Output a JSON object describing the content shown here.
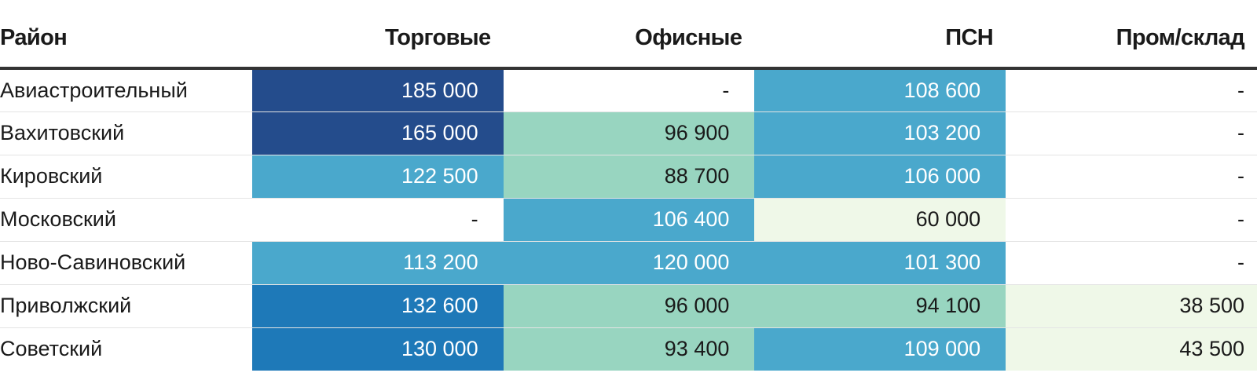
{
  "chart_data": {
    "type": "table",
    "columns": [
      "Район",
      "Торговые",
      "Офисные",
      "ПСН",
      "Пром/склад"
    ],
    "rows": [
      {
        "district": "Авиастроительный",
        "values": [
          "185 000",
          "-",
          "108 600",
          "-"
        ],
        "numeric": [
          185000,
          null,
          108600,
          null
        ]
      },
      {
        "district": "Вахитовский",
        "values": [
          "165 000",
          "96 900",
          "103 200",
          "-"
        ],
        "numeric": [
          165000,
          96900,
          103200,
          null
        ]
      },
      {
        "district": "Кировский",
        "values": [
          "122 500",
          "88 700",
          "106 000",
          "-"
        ],
        "numeric": [
          122500,
          88700,
          106000,
          null
        ]
      },
      {
        "district": "Московский",
        "values": [
          "-",
          "106 400",
          "60 000",
          "-"
        ],
        "numeric": [
          null,
          106400,
          60000,
          null
        ]
      },
      {
        "district": "Ново-Савиновский",
        "values": [
          "113 200",
          "120 000",
          "101 300",
          "-"
        ],
        "numeric": [
          113200,
          120000,
          101300,
          null
        ]
      },
      {
        "district": "Приволжский",
        "values": [
          "132 600",
          "96 000",
          "94 100",
          "38 500"
        ],
        "numeric": [
          132600,
          96000,
          94100,
          38500
        ]
      },
      {
        "district": "Советский",
        "values": [
          "130 000",
          "93 400",
          "109 000",
          "43 500"
        ],
        "numeric": [
          130000,
          93400,
          109000,
          43500
        ]
      }
    ],
    "cell_colors": [
      [
        "#244c8c",
        "#ffffff",
        "#4aa8cc",
        "#ffffff"
      ],
      [
        "#244c8c",
        "#98d5c0",
        "#4aa8cc",
        "#ffffff"
      ],
      [
        "#4aa8cc",
        "#98d5c0",
        "#4aa8cc",
        "#ffffff"
      ],
      [
        "#ffffff",
        "#4aa8cc",
        "#eff8e8",
        "#ffffff"
      ],
      [
        "#4aa8cc",
        "#4aa8cc",
        "#4aa8cc",
        "#ffffff"
      ],
      [
        "#1e79b8",
        "#98d5c0",
        "#98d5c0",
        "#eff8e8"
      ],
      [
        "#1e79b8",
        "#98d5c0",
        "#4aa8cc",
        "#eff8e8"
      ]
    ],
    "colors": {
      "dark_blue": "#244c8c",
      "blue": "#1e79b8",
      "light_blue": "#4aa8cc",
      "mint": "#98d5c0",
      "pale_green": "#eff8e8",
      "empty": "#ffffff",
      "text_on_dark": "#ffffff",
      "text_on_light": "#1a1a1a"
    }
  }
}
